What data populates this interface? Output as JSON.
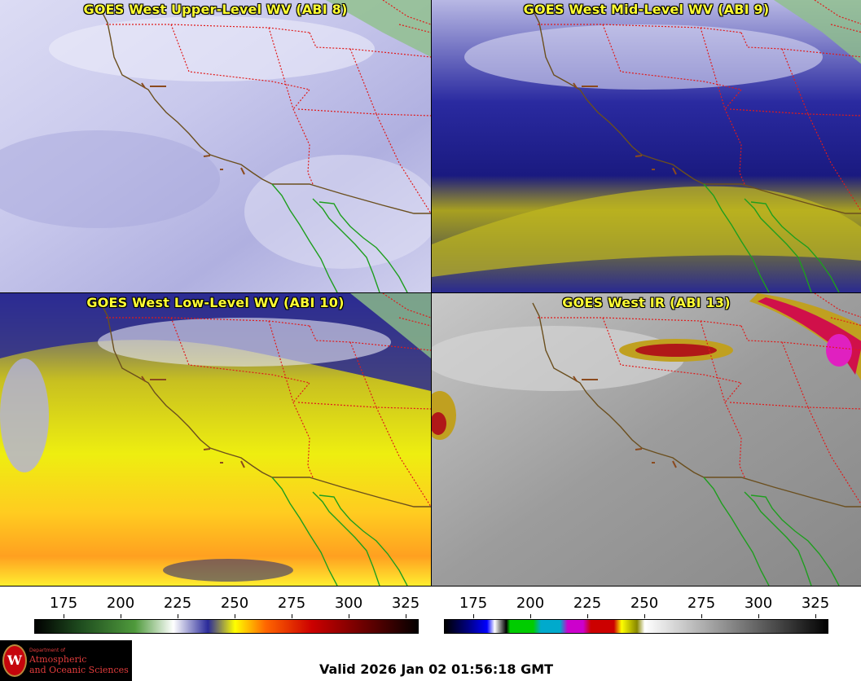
{
  "panels": {
    "upper": {
      "title": "GOES West Upper-Level WV (ABI 8)"
    },
    "mid": {
      "title": "GOES West Mid-Level WV (ABI 9)"
    },
    "low": {
      "title": "GOES West Low-Level WV (ABI 10)"
    },
    "ir": {
      "title": "GOES West IR (ABI 13)"
    }
  },
  "colorbars": {
    "wv": {
      "ticks": [
        "175",
        "200",
        "225",
        "250",
        "275",
        "300",
        "325"
      ],
      "colormap_description": [
        "#000000",
        "#1f4d1f",
        "#4f9a3c",
        "#ffffff",
        "#2a2a9a",
        "#ffff00",
        "#ff6600",
        "#cc0000",
        "#5a0000",
        "#000000"
      ]
    },
    "ir": {
      "ticks": [
        "175",
        "200",
        "225",
        "250",
        "275",
        "300",
        "325"
      ],
      "colormap_description": [
        "#000000",
        "#0000ff",
        "#ffffff",
        "#00cc00",
        "#00aacc",
        "#cc00cc",
        "#cc0000",
        "#ffff00",
        "#ffffff",
        "#000000"
      ]
    }
  },
  "logo": {
    "department": "Department of",
    "line1": "Atmospheric",
    "line2": "and Oceanic Sciences",
    "seal_letter": "W"
  },
  "footer": {
    "valid_text": "Valid 2026 Jan 02 01:56:18 GMT"
  },
  "colors": {
    "coastline": "#1e9e1e",
    "border": "#e01b1b",
    "us_mexico_border": "#6b4f1e",
    "title": "#ffff33"
  }
}
